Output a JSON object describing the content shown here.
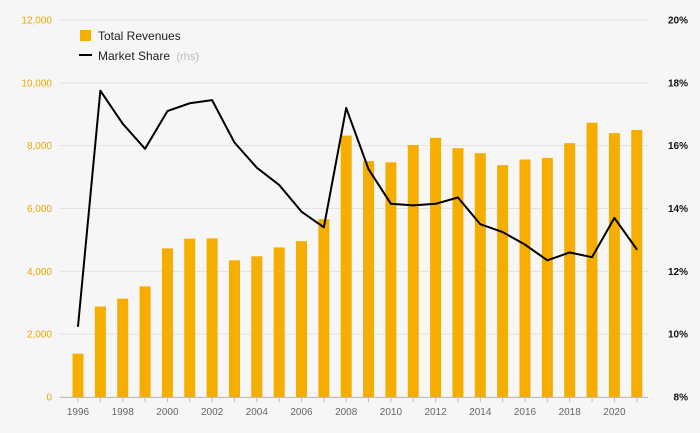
{
  "chart_data": {
    "type": "bar+line",
    "legend": {
      "bar_label": "Total Revenues",
      "line_label": "Market Share",
      "line_note": "(rhs)",
      "placement": "top-left"
    },
    "colors": {
      "bar": "#f5ad00",
      "line": "#000000",
      "left_axis_text": "#f0a500",
      "right_axis_text": "#111111"
    },
    "years": [
      1996,
      1997,
      1998,
      1999,
      2000,
      2001,
      2002,
      2003,
      2004,
      2005,
      2006,
      2007,
      2008,
      2009,
      2010,
      2011,
      2012,
      2013,
      2014,
      2015,
      2016,
      2017,
      2018,
      2019,
      2020,
      2021
    ],
    "series": [
      {
        "name": "Total Revenues",
        "axis": "left",
        "values": [
          1380,
          2880,
          3130,
          3520,
          4730,
          5040,
          5050,
          4350,
          4480,
          4760,
          4960,
          5660,
          8320,
          7510,
          7470,
          8020,
          8250,
          7920,
          7760,
          7380,
          7560,
          7610,
          8080,
          8730,
          8400,
          8500
        ]
      },
      {
        "name": "Market Share",
        "axis": "right",
        "values": [
          10.25,
          17.75,
          16.7,
          15.9,
          17.1,
          17.35,
          17.45,
          16.1,
          15.3,
          14.75,
          13.9,
          13.4,
          17.2,
          15.25,
          14.15,
          14.1,
          14.15,
          14.35,
          13.5,
          13.25,
          12.85,
          12.35,
          12.6,
          12.45,
          13.7,
          12.7
        ]
      }
    ],
    "left_axis": {
      "min": 0,
      "max": 12000,
      "ticks": [
        0,
        2000,
        4000,
        6000,
        8000,
        10000,
        12000
      ],
      "tick_labels": [
        "0",
        "2,000",
        "4,000",
        "6,000",
        "8,000",
        "10,000",
        "12,000"
      ]
    },
    "right_axis": {
      "min": 8,
      "max": 20,
      "ticks": [
        8,
        10,
        12,
        14,
        16,
        18,
        20
      ],
      "tick_labels": [
        "8%",
        "10%",
        "12%",
        "14%",
        "16%",
        "18%",
        "20%"
      ]
    },
    "x_tick_labels": [
      "1996",
      "1998",
      "2000",
      "2002",
      "2004",
      "2006",
      "2008",
      "2010",
      "2012",
      "2014",
      "2016",
      "2018",
      "2020"
    ],
    "grid": true
  }
}
